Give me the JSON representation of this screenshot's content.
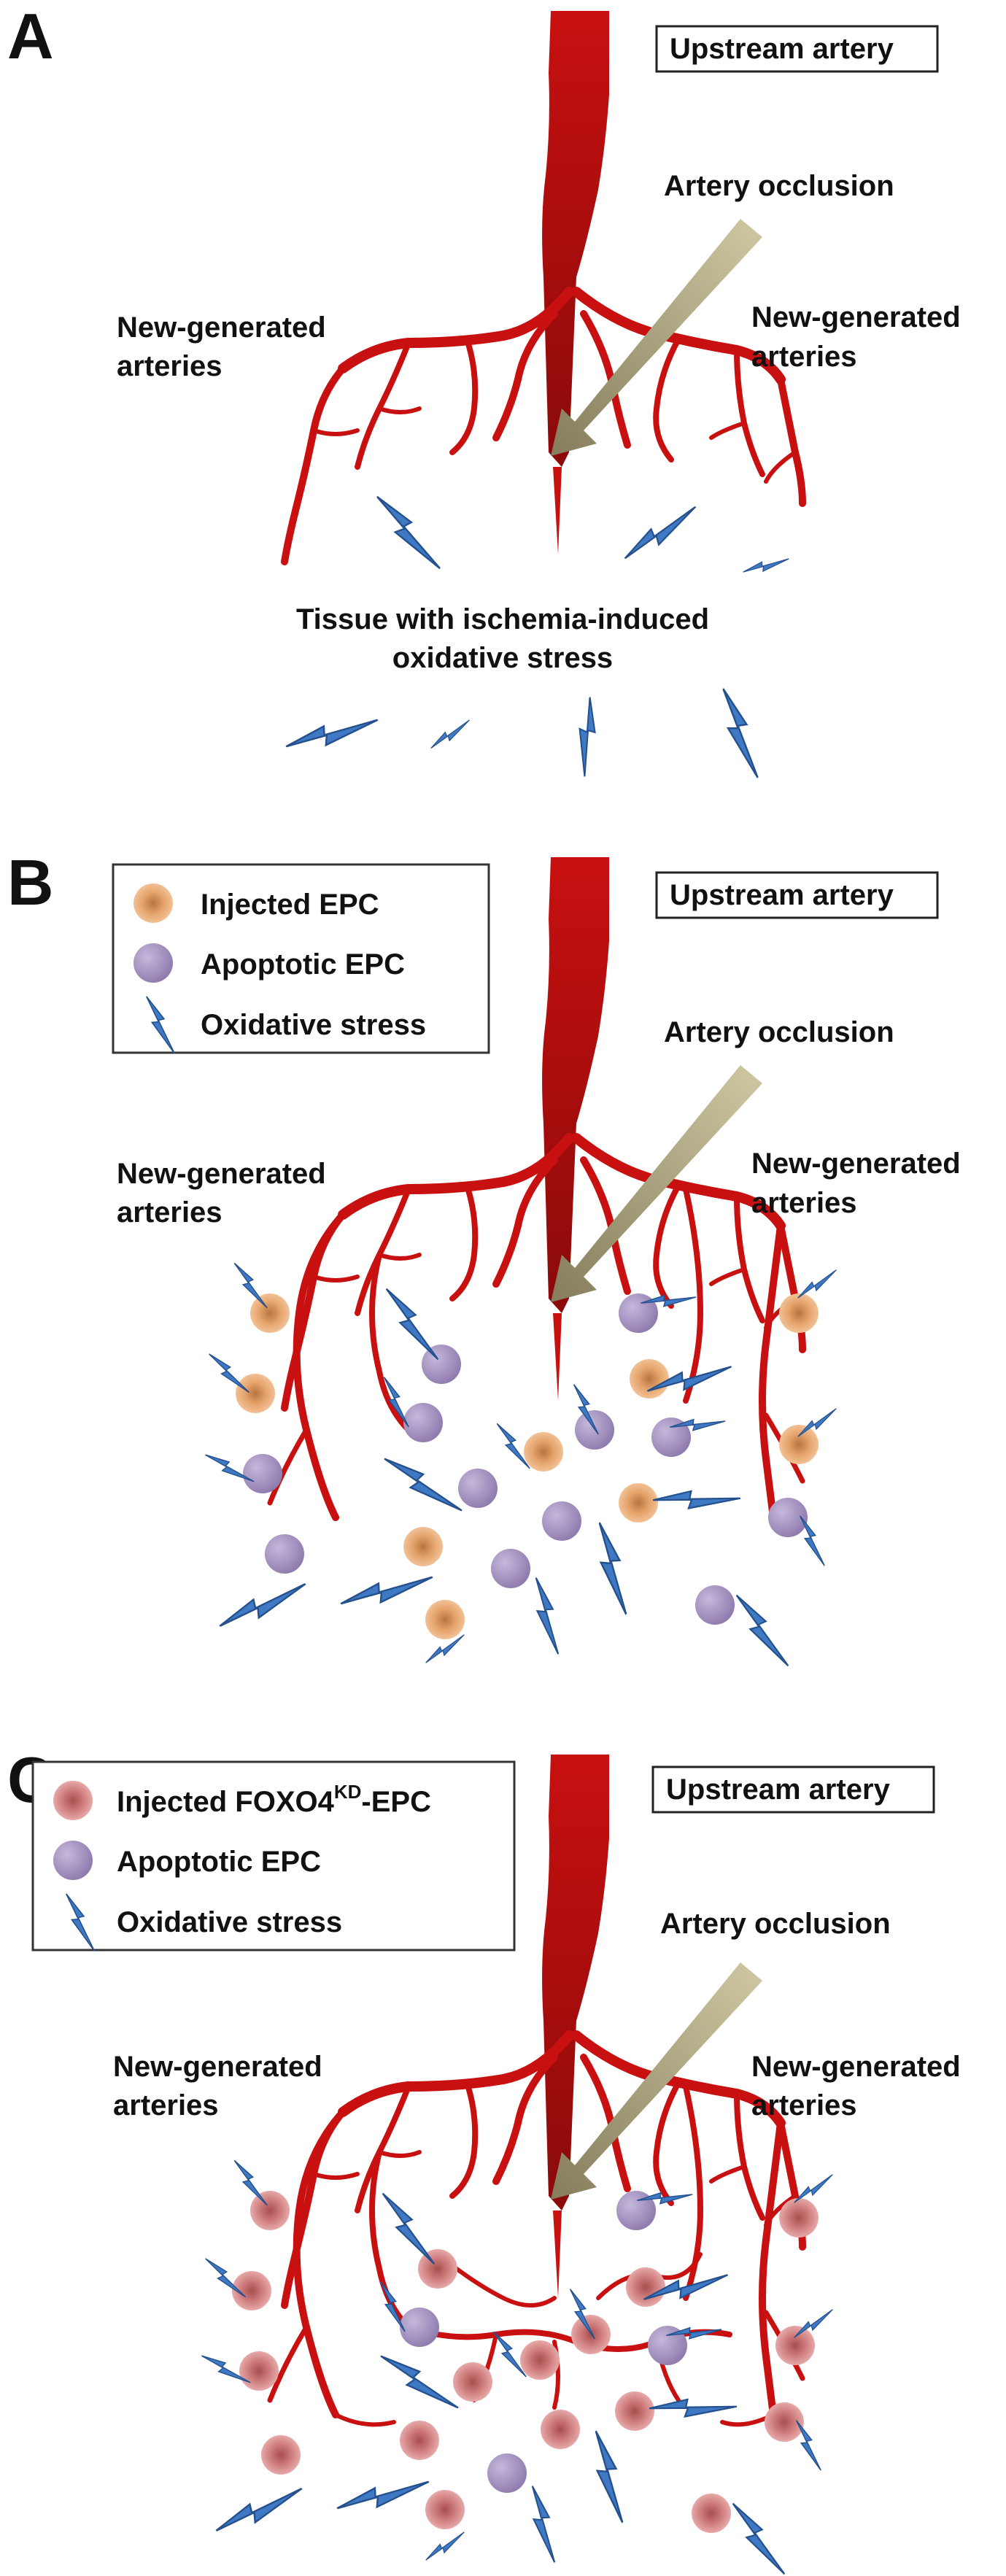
{
  "colors": {
    "artery": "#c81010",
    "artery_dark": "#8a0a0a",
    "occlusion_arrow": "#b6ad86",
    "bolt": "#3f79c3",
    "epc_injected": "#e8a36a",
    "epc_apoptotic": "#a795c1",
    "epc_foxo4kd": "#cf7d7d"
  },
  "icons": {
    "oxidative_stress": "lightning-bolt-icon",
    "injected_epc": "orange-cell-icon",
    "apoptotic_epc": "purple-cell-icon",
    "foxo4kd_epc": "red-cell-icon"
  },
  "panels": [
    {
      "letter": "A",
      "upstream_label": "Upstream artery",
      "occlusion_label": "Artery occlusion",
      "left_arteries_line1": "New-generated",
      "left_arteries_line2": "arteries",
      "right_arteries_line1": "New-generated",
      "right_arteries_line2": "arteries",
      "tissue_line1": "Tissue with ischemia-induced",
      "tissue_line2": "oxidative stress"
    },
    {
      "letter": "B",
      "upstream_label": "Upstream artery",
      "occlusion_label": "Artery occlusion",
      "left_arteries_line1": "New-generated",
      "left_arteries_line2": "arteries",
      "right_arteries_line1": "New-generated",
      "right_arteries_line2": "arteries",
      "legend": [
        {
          "label": "Injected EPC"
        },
        {
          "label": "Apoptotic EPC"
        },
        {
          "label": "Oxidative stress"
        }
      ]
    },
    {
      "letter": "C",
      "upstream_label": "Upstream artery",
      "occlusion_label": "Artery occlusion",
      "left_arteries_line1": "New-generated",
      "left_arteries_line2": "arteries",
      "right_arteries_line1": "New-generated",
      "right_arteries_line2": "arteries",
      "legend": [
        {
          "label": "Injected FOXO4",
          "superscript": "KD",
          "label_suffix": "-EPC"
        },
        {
          "label": "Apoptotic EPC"
        },
        {
          "label": "Oxidative stress"
        }
      ]
    }
  ]
}
